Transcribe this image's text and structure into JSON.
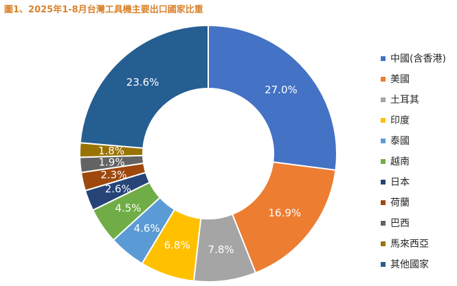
{
  "title": "圖1、2025年1-8月台灣工具機主要出口國家比重",
  "chart_data": {
    "type": "pie",
    "variant": "donut",
    "legend_position": "right",
    "categories": [
      "中國(含香港)",
      "美國",
      "土耳其",
      "印度",
      "泰國",
      "越南",
      "日本",
      "荷蘭",
      "巴西",
      "馬來西亞",
      "其他國家"
    ],
    "values": [
      27.0,
      16.9,
      7.8,
      6.8,
      4.6,
      4.5,
      2.6,
      2.3,
      1.9,
      1.8,
      23.6
    ],
    "data_labels": [
      "27.0%",
      "16.9%",
      "7.8%",
      "6.8%",
      "4.6%",
      "4.5%",
      "2.6%",
      "2.3%",
      "1.9%",
      "1.8%",
      "23.6%"
    ],
    "colors": [
      "#4472c4",
      "#ed7d31",
      "#a5a5a5",
      "#ffc000",
      "#5b9bd5",
      "#70ad47",
      "#264478",
      "#9e480e",
      "#636363",
      "#997300",
      "#255e91"
    ]
  }
}
